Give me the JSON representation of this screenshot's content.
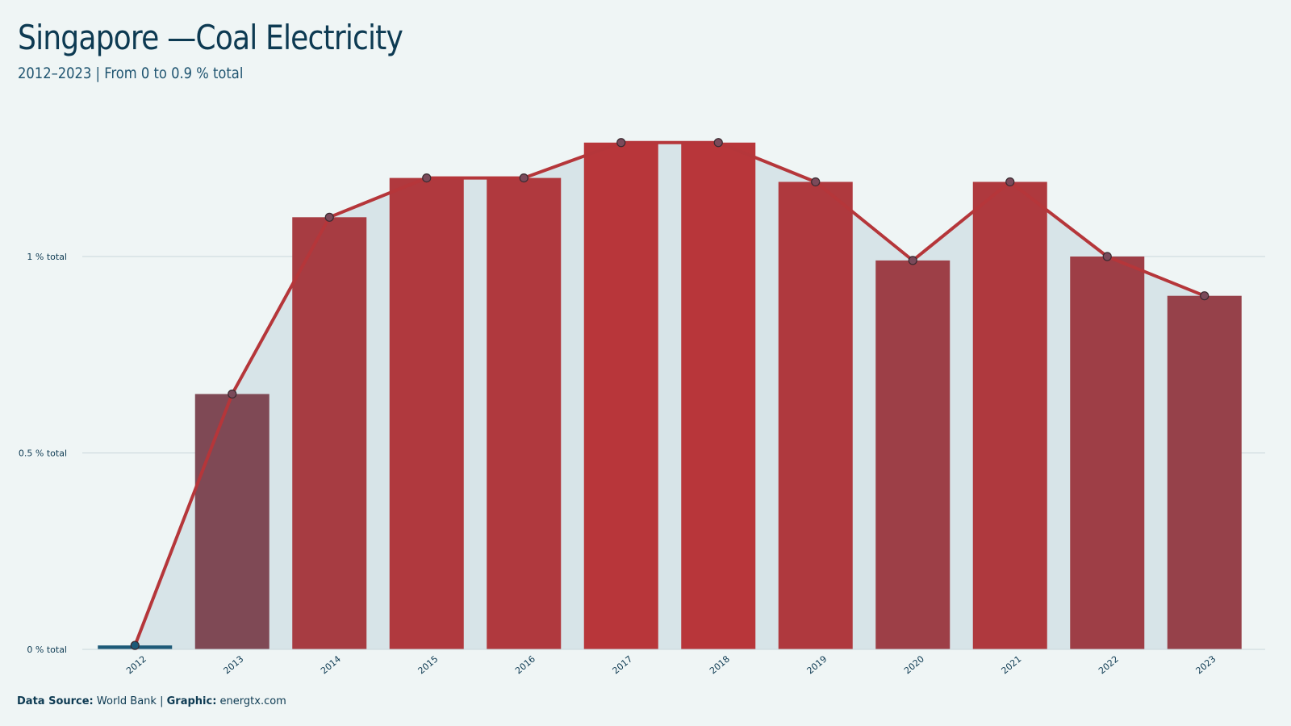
{
  "header": {
    "title": "Singapore —Coal Electricity",
    "subtitle": "2012–2023 | From 0 to 0.9 % total"
  },
  "footer": {
    "source_label": "Data Source:",
    "source_value": "World Bank",
    "sep": "|",
    "graphic_label": "Graphic:",
    "graphic_value": "energtx.com"
  },
  "colors": {
    "background": "#eff5f5",
    "area_fill": "#d7e4e8",
    "line": "#b5363a",
    "bar_low": "#7b4a57",
    "bar_high": "#b8363a",
    "first_bar": "#1d5a78",
    "text": "#0d3a52"
  },
  "chart_data": {
    "type": "bar",
    "categories": [
      "2012",
      "2013",
      "2014",
      "2015",
      "2016",
      "2017",
      "2018",
      "2019",
      "2020",
      "2021",
      "2022",
      "2023"
    ],
    "values": [
      0.01,
      0.65,
      1.1,
      1.2,
      1.2,
      1.29,
      1.29,
      1.19,
      0.99,
      1.19,
      1.0,
      0.9
    ],
    "line_overlay": true,
    "area_overlay": true,
    "ylim": [
      0,
      1.4
    ],
    "yticks": [
      0,
      0.5,
      1
    ],
    "ytick_labels": [
      "0 % total",
      "0.5 % total",
      "1 % total"
    ],
    "grid": "horizontal",
    "xlabel": "",
    "ylabel": ""
  }
}
